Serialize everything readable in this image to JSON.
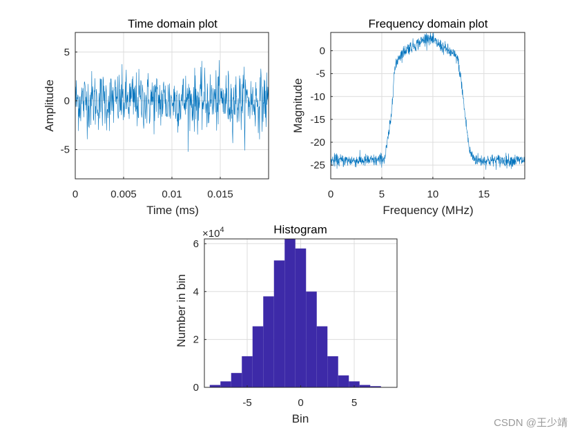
{
  "colors": {
    "line": "#0072bd",
    "bar": "#3d2aa8",
    "grid": "#dcdcdc",
    "axis": "#262626"
  },
  "chart_data": [
    {
      "type": "line",
      "title": "Time domain plot",
      "xlabel": "Time (ms)",
      "ylabel": "Amplitude",
      "xlim": [
        0,
        0.02
      ],
      "ylim": [
        -8,
        7
      ],
      "xticks": [
        0,
        0.005,
        0.01,
        0.015
      ],
      "xtick_labels": [
        "0",
        "0.005",
        "0.01",
        "0.015"
      ],
      "yticks": [
        -5,
        0,
        5
      ],
      "ytick_labels": [
        "-5",
        "0",
        "5"
      ],
      "grid": true,
      "series": [
        {
          "name": "signal",
          "description": "zero-mean gaussian noise, std approx 1.5",
          "n_points": 600,
          "std": 1.5
        }
      ]
    },
    {
      "type": "line",
      "title": "Frequency domain plot",
      "xlabel": "Frequency (MHz)",
      "ylabel": "Magnitude",
      "xlim": [
        0,
        19
      ],
      "ylim": [
        -28,
        4
      ],
      "xticks": [
        0,
        5,
        10,
        15
      ],
      "xtick_labels": [
        "0",
        "5",
        "10",
        "15"
      ],
      "yticks": [
        0,
        -5,
        -10,
        -15,
        -20,
        -25
      ],
      "ytick_labels": [
        "0",
        "-5",
        "-10",
        "-15",
        "-20",
        "-25"
      ],
      "grid": true,
      "series": [
        {
          "name": "spectrum",
          "envelope_x": [
            0,
            4.5,
            5.3,
            5.9,
            6.2,
            6.6,
            7.5,
            8.5,
            9.5,
            10.5,
            11.5,
            12.4,
            12.8,
            13.2,
            13.6,
            14.0,
            14.6,
            15.5,
            19
          ],
          "envelope_y": [
            -24,
            -24,
            -23.5,
            -15,
            -5,
            -1.5,
            0.5,
            1.5,
            3,
            1.5,
            0,
            -1.5,
            -7,
            -15,
            -22,
            -23.5,
            -24,
            -24,
            -24
          ]
        }
      ]
    },
    {
      "type": "bar",
      "title": "Histogram",
      "xlabel": "Bin",
      "ylabel": "Number in bin",
      "y_multiplier_label": "×10",
      "y_multiplier_exp": "4",
      "xlim": [
        -9,
        9
      ],
      "ylim": [
        0,
        6.2
      ],
      "xticks": [
        -5,
        0,
        5
      ],
      "xtick_labels": [
        "-5",
        "0",
        "5"
      ],
      "yticks": [
        0,
        2,
        4,
        6
      ],
      "ytick_labels": [
        "0",
        "2",
        "4",
        "6"
      ],
      "grid": true,
      "bin_edges": [
        -8.5,
        -7.5,
        -6.5,
        -5.5,
        -4.5,
        -3.5,
        -2.5,
        -1.5,
        -0.5,
        0.5,
        1.5,
        2.5,
        3.5,
        4.5,
        5.5,
        6.5,
        7.5,
        8.5
      ],
      "values": [
        0.1,
        0.25,
        0.6,
        1.3,
        2.55,
        3.8,
        5.3,
        6.2,
        5.8,
        4.0,
        2.55,
        1.3,
        0.5,
        0.25,
        0.1,
        0.05,
        0.0
      ]
    }
  ],
  "watermark": "CSDN @王少靖"
}
